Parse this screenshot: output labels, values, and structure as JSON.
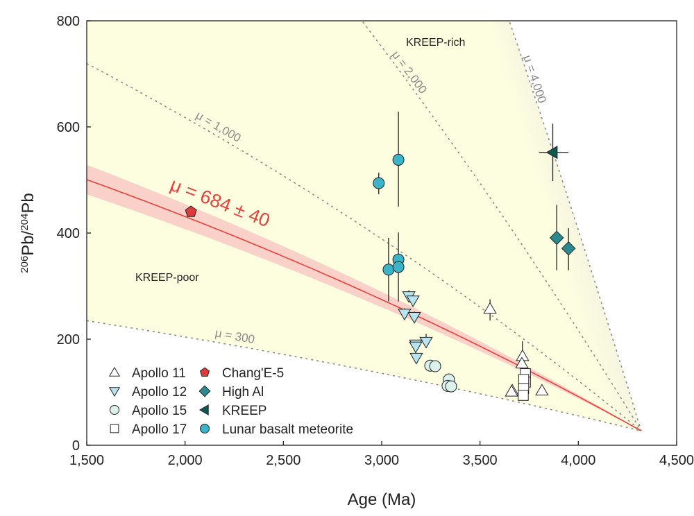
{
  "chart_data": {
    "type": "scatter",
    "xlabel": "Age (Ma)",
    "ylabel_parts": [
      "206",
      "Pb/",
      "204",
      "Pb"
    ],
    "xlim": [
      1500,
      4500
    ],
    "ylim": [
      0,
      800
    ],
    "xticks": [
      1500,
      2000,
      2500,
      3000,
      3500,
      4000,
      4500
    ],
    "xtick_labels": [
      "1,500",
      "2,000",
      "2,500",
      "3,000",
      "3,500",
      "4,000",
      "4,500"
    ],
    "yticks": [
      0,
      200,
      400,
      600,
      800
    ],
    "ytick_labels": [
      "0",
      "200",
      "400",
      "600",
      "800"
    ],
    "grid": false,
    "legend_placement": "bottom-left",
    "evolution_lines": {
      "origin_age": 4320,
      "origin_ratio": 27,
      "reference_lines": [
        {
          "mu": 300,
          "label": "μ = 300"
        },
        {
          "mu": 1000,
          "label": "μ = 1,000"
        },
        {
          "mu": 2000,
          "label": "μ = 2,000"
        },
        {
          "mu": 4000,
          "label": "μ = 4,000"
        }
      ],
      "fit": {
        "mu": 684,
        "uncertainty": 40,
        "label": "μ = 684 ± 40",
        "color": "#e8413a"
      }
    },
    "region_labels": [
      "KREEP-rich",
      "KREEP-poor"
    ],
    "colors": {
      "yellow_region": "#fdfde0",
      "blue_region": "#8a90ec",
      "fit_band": "#f7c6c2"
    },
    "series": [
      {
        "name": "Apollo 11",
        "marker": "triangle-up",
        "color": "#ffffff",
        "points": [
          [
            3551,
            257,
            235,
            275
          ],
          [
            3716,
            168,
            null,
            196
          ],
          [
            3713,
            154,
            null,
            null
          ],
          [
            3664,
            103,
            null,
            null
          ],
          [
            3660,
            101,
            null,
            null
          ],
          [
            3815,
            103,
            null,
            null
          ]
        ]
      },
      {
        "name": "Apollo 12",
        "marker": "triangle-down",
        "color": "#b8e4f0",
        "points": [
          [
            3138,
            281,
            null,
            292
          ],
          [
            3159,
            273,
            null,
            null
          ],
          [
            3116,
            248,
            null,
            258
          ],
          [
            3166,
            242,
            null,
            252
          ],
          [
            3226,
            195,
            null,
            210
          ],
          [
            3173,
            190,
            null,
            null
          ],
          [
            3173,
            186,
            null,
            null
          ],
          [
            3176,
            165,
            null,
            null
          ]
        ]
      },
      {
        "name": "Apollo 15",
        "marker": "circle",
        "color": "#dcf1ec",
        "points": [
          [
            3247,
            150,
            null,
            null
          ],
          [
            3272,
            149,
            null,
            null
          ],
          [
            3342,
            124,
            null,
            135
          ],
          [
            3335,
            112,
            null,
            null
          ],
          [
            3353,
            111,
            null,
            null
          ]
        ]
      },
      {
        "name": "Apollo 17",
        "marker": "square",
        "color": "#ffffff",
        "points": [
          [
            3731,
            135,
            null,
            null
          ],
          [
            3731,
            119,
            null,
            null
          ],
          [
            3722,
            124,
            null,
            null
          ],
          [
            3722,
            107,
            null,
            null
          ],
          [
            3720,
            94,
            null,
            null
          ]
        ]
      },
      {
        "name": "Chang'E-5",
        "marker": "pentagon",
        "color": "#e03a3a",
        "points": [
          [
            2030,
            440,
            null,
            null
          ]
        ]
      },
      {
        "name": "High Al",
        "marker": "diamond",
        "color": "#2a8a90",
        "points": [
          [
            3890,
            391,
            330,
            453
          ],
          [
            3950,
            371,
            330,
            409
          ]
        ]
      },
      {
        "name": "KREEP",
        "marker": "triangle-left",
        "color": "#0d5a50",
        "points": [
          [
            3870,
            552,
            498,
            606
          ]
        ],
        "xerr": [
          [
            3800,
            3950
          ]
        ]
      },
      {
        "name": "Lunar basalt meteorite",
        "marker": "circle",
        "color": "#3ab4c8",
        "points": [
          [
            3085,
            538,
            450,
            629
          ],
          [
            2985,
            494,
            473,
            514
          ],
          [
            3035,
            331,
            271,
            391
          ],
          [
            3085,
            350,
            271,
            401
          ],
          [
            3085,
            336,
            null,
            null
          ]
        ]
      }
    ]
  }
}
